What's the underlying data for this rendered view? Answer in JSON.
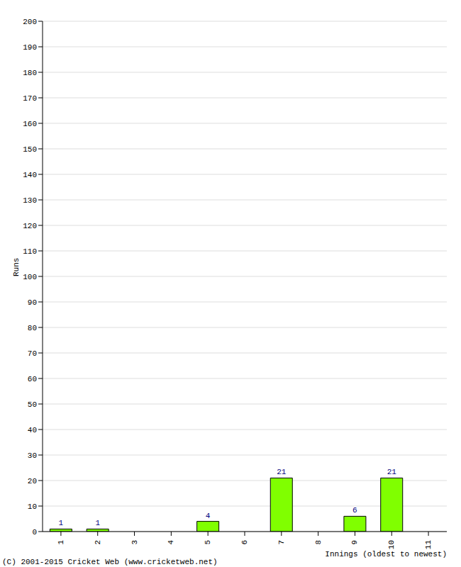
{
  "chart_data": {
    "type": "bar",
    "categories": [
      "1",
      "2",
      "3",
      "4",
      "5",
      "6",
      "7",
      "8",
      "9",
      "10",
      "11"
    ],
    "values": [
      1,
      1,
      0,
      0,
      4,
      0,
      21,
      0,
      6,
      21,
      0
    ],
    "color": "#80ff00",
    "x_label": "Innings (oldest to newest)",
    "y_label": "Runs",
    "footer": "(C) 2001-2015 Cricket Web (www.cricketweb.net)",
    "ylim": [
      0,
      200
    ],
    "yticks": [
      0,
      10,
      20,
      30,
      40,
      50,
      60,
      70,
      80,
      90,
      100,
      110,
      120,
      130,
      140,
      150,
      160,
      170,
      180,
      190,
      200
    ],
    "grid": true,
    "data_labels": true
  }
}
